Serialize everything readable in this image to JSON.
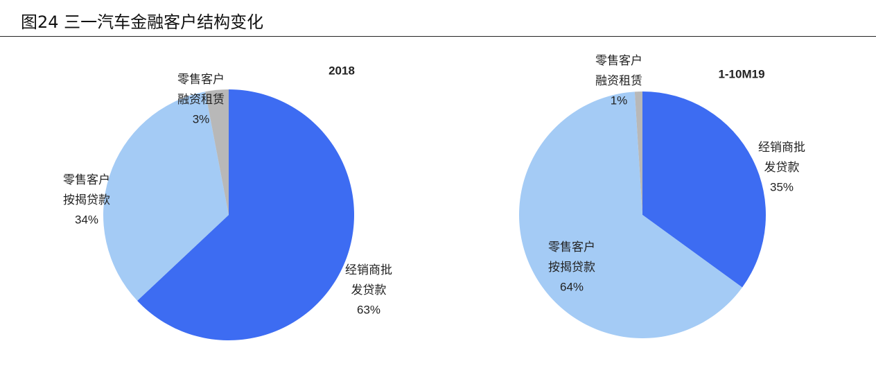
{
  "title": "图24 三一汽车金融客户结构变化",
  "chart_data": [
    {
      "type": "pie",
      "title": "2018",
      "categories": [
        "经销商批发贷款",
        "零售客户按揭贷款",
        "零售客户融资租赁"
      ],
      "values": [
        63,
        34,
        3
      ],
      "value_labels": [
        "63%",
        "34%",
        "3%"
      ],
      "colors": [
        "#3d6cf2",
        "#a4cbf5",
        "#b8b8b8"
      ]
    },
    {
      "type": "pie",
      "title": "1-10M19",
      "categories": [
        "经销商批发贷款",
        "零售客户按揭贷款",
        "零售客户融资租赁"
      ],
      "values": [
        35,
        64,
        1
      ],
      "value_labels": [
        "35%",
        "64%",
        "1%"
      ],
      "colors": [
        "#3d6cf2",
        "#a4cbf5",
        "#b8b8b8"
      ]
    }
  ]
}
